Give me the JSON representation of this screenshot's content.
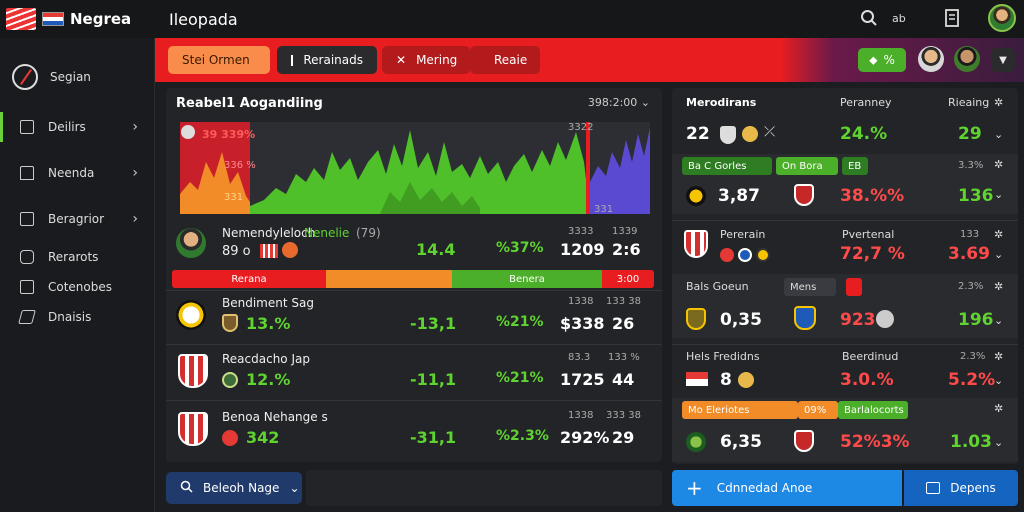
{
  "brand": {
    "name": "Negrea"
  },
  "page_title": "Ileopada",
  "sidebar": {
    "top_label": "Segian",
    "items": [
      {
        "label": "Deilirs"
      },
      {
        "label": "Neenda"
      },
      {
        "label": "Beragrior"
      },
      {
        "label": "Rerarots"
      },
      {
        "label": "Cotenobes"
      },
      {
        "label": "Dnaisis"
      }
    ]
  },
  "ribbon": {
    "buttons": [
      "Stei Ormen",
      "Rerainads",
      "Mering",
      "Reaie"
    ],
    "green_label": "%"
  },
  "panel": {
    "title": "Reabel1 Aogandiing",
    "time": "398:2:00"
  },
  "chart_data": {
    "type": "area",
    "overlay_labels": [
      "39 339%",
      "336 %",
      "331"
    ],
    "corner_labels": [
      "3322",
      "331"
    ]
  },
  "rows": [
    {
      "name": "Nemendyleloch",
      "highlight": "Nenelie",
      "tag": "(79)",
      "sub": "89 o",
      "v1": "14.4",
      "v2": "%37%",
      "v3": "1209",
      "v4": "2:6",
      "muted1": "3333",
      "muted2": "1339"
    },
    {
      "name": "Bendiment Sag",
      "sub": "13.%",
      "v1": "-13,1",
      "v2": "%21%",
      "v3": "$338",
      "v4": "26",
      "muted1": "1338",
      "muted2": "133 38"
    },
    {
      "name": "Reacdacho Jap",
      "sub": "12.%",
      "v1": "-11,1",
      "v2": "%21%",
      "v3": "1725",
      "v4": "44",
      "muted1": "83.3",
      "muted2": "133 %"
    },
    {
      "name": "Benoa Nehange s",
      "sub": "342",
      "v1": "-31,1",
      "v2": "%2.3%",
      "v3": "292%",
      "v4": "29",
      "muted1": "1338",
      "muted2": "333 38"
    }
  ],
  "segments": [
    "Rerana",
    "Benera",
    "3:00"
  ],
  "bottom_button": "Beleoh Nage",
  "right": {
    "headers": [
      "Merodirans",
      "Peranney",
      "Rieaing"
    ],
    "top_row": {
      "a": "22",
      "b": "24.%",
      "c": "29"
    },
    "chips1": [
      "Ba C Gorles",
      "On Bora",
      "EB"
    ],
    "chip1_muted": "3.3%",
    "row2": {
      "a": "3,87",
      "b": "38.%%",
      "c": "136"
    },
    "block1": {
      "title": "Pererain",
      "right": "Pvertenal",
      "muted": "133"
    },
    "row3": {
      "b": "72,7 %",
      "c": "3.69"
    },
    "block2": {
      "title": "Bals Goeun",
      "chip": "Mens",
      "muted": "2.3%"
    },
    "row4": {
      "a": "0,35",
      "b": "923",
      "c": "196"
    },
    "block3": {
      "title": "Hels Fredidns",
      "right": "Beerdinud",
      "muted": "2.3%"
    },
    "row5": {
      "a": "8",
      "b": "3.0.%",
      "c": "5.2%"
    },
    "chips2": [
      "Mo Eleriotes",
      "09%",
      "Barlalocorts"
    ],
    "row6": {
      "a": "6,35",
      "b": "52%3%",
      "c": "1.03"
    }
  },
  "bottom_blue": "Cdnnedad Anoe",
  "bottom_blue2": "Depens",
  "colors": {
    "accent_red": "#e81d20",
    "accent_green": "#5fd32f",
    "accent_blue": "#1e88e5"
  }
}
